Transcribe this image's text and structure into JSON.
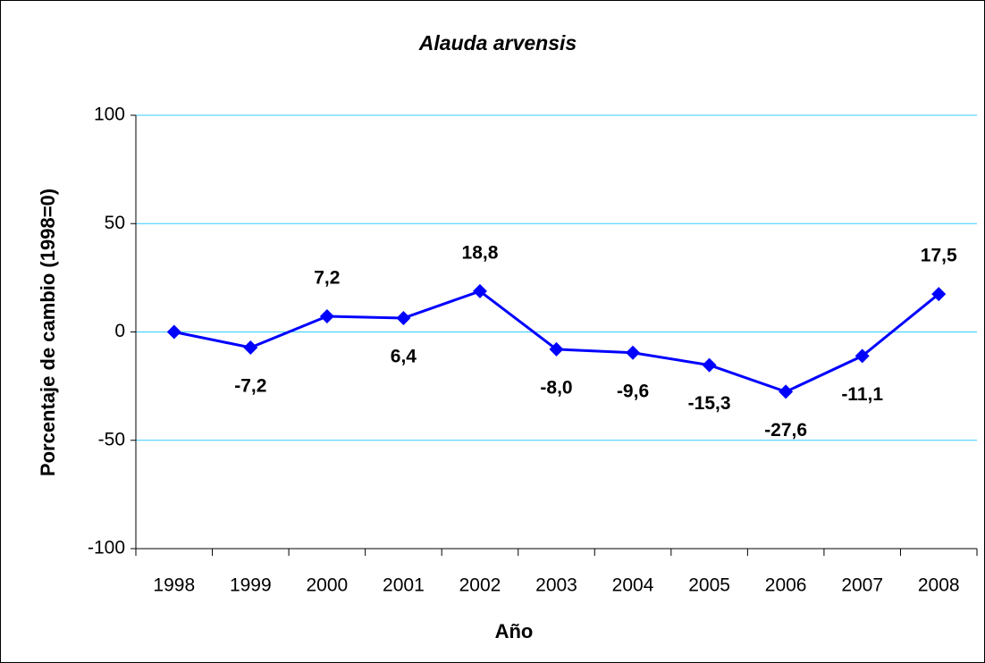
{
  "chart_data": {
    "type": "line",
    "title": "Alauda arvensis",
    "x_label": "Año",
    "y_label": "Porcentaje de cambio (1998=0)",
    "categories": [
      "1998",
      "1999",
      "2000",
      "2001",
      "2002",
      "2003",
      "2004",
      "2005",
      "2006",
      "2007",
      "2008"
    ],
    "series": [
      {
        "name": "Alauda arvensis",
        "color": "#0000ff",
        "values": [
          0,
          -7.2,
          7.2,
          6.4,
          18.8,
          -8.0,
          -9.6,
          -15.3,
          -27.6,
          -11.1,
          17.5
        ],
        "value_labels": [
          null,
          "-7,2",
          "7,2",
          "6,4",
          "18,8",
          "-8,0",
          "-9,6",
          "-15,3",
          "-27,6",
          "-11,1",
          "17,5"
        ]
      }
    ],
    "ylim": [
      -100,
      100
    ],
    "yticks": [
      -100,
      -50,
      0,
      50,
      100
    ],
    "grid": true,
    "grid_color": "#33ccff"
  }
}
